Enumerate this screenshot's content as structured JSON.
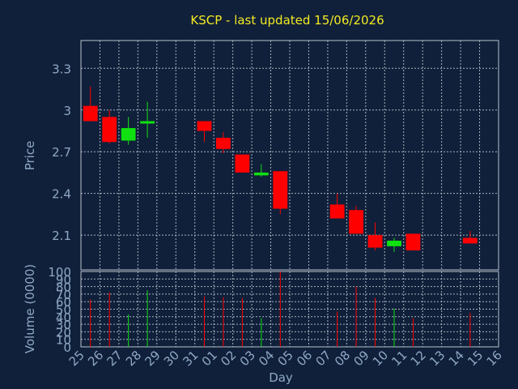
{
  "chart_data": {
    "type": "candlestick",
    "title": "KSCP - last updated 15/06/2026",
    "x_axis": {
      "label": "Day",
      "ticks": [
        "25",
        "26",
        "27",
        "28",
        "29",
        "30",
        "31",
        "01",
        "02",
        "03",
        "04",
        "05",
        "06",
        "07",
        "08",
        "09",
        "10",
        "11",
        "12",
        "13",
        "14",
        "15",
        "16"
      ]
    },
    "price_panel": {
      "ylabel": "Price",
      "ylim": [
        1.85,
        3.5
      ],
      "yticks": [
        "3.3",
        "3",
        "2.7",
        "2.4",
        "2.1"
      ],
      "ytick_values": [
        3.3,
        3.0,
        2.7,
        2.4,
        2.1
      ],
      "grid": true
    },
    "volume_panel": {
      "ylabel": "Volume (0000)",
      "ylim": [
        0,
        100
      ],
      "yticks": [
        "100",
        "90",
        "80",
        "70",
        "60",
        "50",
        "40",
        "30",
        "20",
        "10",
        "0"
      ],
      "ytick_values": [
        100,
        90,
        80,
        70,
        60,
        50,
        40,
        30,
        20,
        10,
        0
      ],
      "grid": true
    },
    "colors": {
      "up": "#11e011",
      "down": "#ff0000",
      "background": "#10203a",
      "grid": "#b8c2cc",
      "text": "#8fa8c6",
      "title": "#f2ea22"
    },
    "candles": [
      {
        "day": "26",
        "open": 3.03,
        "high": 3.17,
        "low": 2.92,
        "close": 2.92,
        "volume": 63
      },
      {
        "day": "27",
        "open": 2.95,
        "high": 3.0,
        "low": 2.76,
        "close": 2.77,
        "volume": 72
      },
      {
        "day": "28",
        "open": 2.78,
        "high": 2.95,
        "low": 2.75,
        "close": 2.87,
        "volume": 43
      },
      {
        "day": "29",
        "open": 2.91,
        "high": 3.06,
        "low": 2.8,
        "close": 2.92,
        "volume": 75
      },
      {
        "day": "01",
        "open": 2.92,
        "high": 2.92,
        "low": 2.77,
        "close": 2.85,
        "volume": 67
      },
      {
        "day": "02",
        "open": 2.8,
        "high": 2.84,
        "low": 2.69,
        "close": 2.72,
        "volume": 66
      },
      {
        "day": "03",
        "open": 2.68,
        "high": 2.68,
        "low": 2.55,
        "close": 2.55,
        "volume": 65
      },
      {
        "day": "04",
        "open": 2.53,
        "high": 2.61,
        "low": 2.52,
        "close": 2.55,
        "volume": 38
      },
      {
        "day": "05",
        "open": 2.56,
        "high": 2.56,
        "low": 2.25,
        "close": 2.29,
        "volume": 100
      },
      {
        "day": "08",
        "open": 2.32,
        "high": 2.4,
        "low": 2.22,
        "close": 2.22,
        "volume": 47
      },
      {
        "day": "09",
        "open": 2.28,
        "high": 2.31,
        "low": 2.11,
        "close": 2.11,
        "volume": 80
      },
      {
        "day": "10",
        "open": 2.1,
        "high": 2.19,
        "low": 1.99,
        "close": 2.01,
        "volume": 65
      },
      {
        "day": "11",
        "open": 2.02,
        "high": 2.08,
        "low": 1.98,
        "close": 2.06,
        "volume": 51
      },
      {
        "day": "12",
        "open": 2.11,
        "high": 2.11,
        "low": 1.99,
        "close": 1.99,
        "volume": 38
      },
      {
        "day": "15",
        "open": 2.08,
        "high": 2.13,
        "low": 2.04,
        "close": 2.04,
        "volume": 45
      }
    ]
  }
}
